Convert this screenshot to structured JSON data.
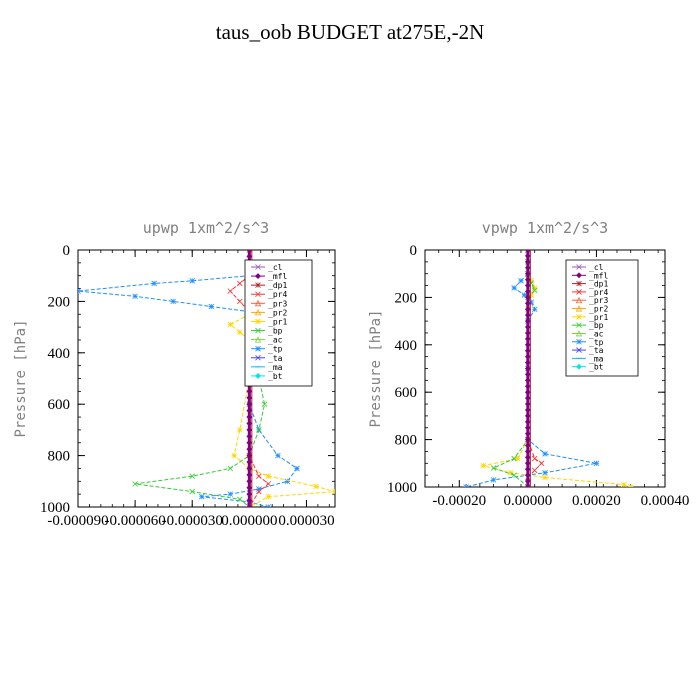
{
  "title": "taus_oob  BUDGET at275E,-2N",
  "legend": [
    {
      "name": "_cl",
      "color": "#9b59b6",
      "marker": "x"
    },
    {
      "name": "_mfl",
      "color": "#800080",
      "marker": "diamond"
    },
    {
      "name": "_dp1",
      "color": "#b22222",
      "marker": "star"
    },
    {
      "name": "_pr4",
      "color": "#ff3030",
      "marker": "x"
    },
    {
      "name": "_pr3",
      "color": "#ff6030",
      "marker": "tri"
    },
    {
      "name": "_pr2",
      "color": "#ffa500",
      "marker": "tri"
    },
    {
      "name": "_pr1",
      "color": "#ffd700",
      "marker": "star"
    },
    {
      "name": "_bp",
      "color": "#32cd32",
      "marker": "x"
    },
    {
      "name": "_ac",
      "color": "#7fd13b",
      "marker": "tri"
    },
    {
      "name": "_tp",
      "color": "#1e90ff",
      "marker": "star"
    },
    {
      "name": "_ta",
      "color": "#4040ff",
      "marker": "x"
    },
    {
      "name": "_ma",
      "color": "#00bfff",
      "marker": "dash"
    },
    {
      "name": "_bt",
      "color": "#00e5ee",
      "marker": "diamond"
    }
  ],
  "chart_data": [
    {
      "type": "line",
      "subtitle": "upwp   1xm^2/s^3",
      "ylabel": "Pressure [hPa]",
      "ylim": [
        1000,
        0
      ],
      "xlim": [
        -9e-05,
        4.5e-05
      ],
      "x_ticks": [
        -9e-05,
        -6e-05,
        -3e-05,
        0.0,
        3e-05
      ],
      "x_tick_labels": [
        "-0.000090",
        "-0.000060",
        "-0.000030",
        "0.000000",
        "0.000030"
      ],
      "y_ticks": [
        0,
        200,
        400,
        600,
        800,
        1000
      ],
      "y_tick_labels": [
        "0",
        "200",
        "400",
        "600",
        "800",
        "1000"
      ],
      "series": [
        {
          "name": "_tp",
          "points": [
            [
              0,
              50
            ],
            [
              0,
              100
            ],
            [
              -3e-05,
              120
            ],
            [
              -5e-05,
              130
            ],
            [
              -9e-05,
              160
            ],
            [
              -6e-05,
              180
            ],
            [
              -4e-05,
              200
            ],
            [
              -2e-05,
              220
            ],
            [
              0,
              240
            ],
            [
              2e-05,
              260
            ],
            [
              2.5e-05,
              280
            ],
            [
              1e-05,
              300
            ],
            [
              0,
              340
            ],
            [
              0,
              400
            ],
            [
              0,
              600
            ],
            [
              5e-06,
              700
            ],
            [
              1.5e-05,
              800
            ],
            [
              2.5e-05,
              850
            ],
            [
              2e-05,
              900
            ],
            [
              5e-06,
              930
            ],
            [
              -1e-05,
              950
            ],
            [
              -2.5e-05,
              960
            ],
            [
              0,
              980
            ],
            [
              1e-05,
              1000
            ]
          ]
        },
        {
          "name": "_pr1",
          "points": [
            [
              0,
              50
            ],
            [
              0,
              100
            ],
            [
              1.5e-05,
              130
            ],
            [
              2.8e-05,
              160
            ],
            [
              2e-05,
              190
            ],
            [
              1e-05,
              220
            ],
            [
              0,
              250
            ],
            [
              -1e-05,
              290
            ],
            [
              -5e-06,
              320
            ],
            [
              0,
              350
            ],
            [
              0,
              500
            ],
            [
              -5e-06,
              700
            ],
            [
              -8e-06,
              800
            ],
            [
              0,
              850
            ],
            [
              1e-05,
              880
            ],
            [
              3.5e-05,
              920
            ],
            [
              4.5e-05,
              940
            ],
            [
              1e-05,
              960
            ],
            [
              0,
              1000
            ]
          ]
        },
        {
          "name": "_bp",
          "points": [
            [
              0,
              50
            ],
            [
              0,
              100
            ],
            [
              5e-06,
              140
            ],
            [
              1e-05,
              170
            ],
            [
              5e-06,
              200
            ],
            [
              0,
              240
            ],
            [
              0,
              300
            ],
            [
              0,
              400
            ],
            [
              5e-06,
              500
            ],
            [
              8e-06,
              600
            ],
            [
              5e-06,
              700
            ],
            [
              0,
              800
            ],
            [
              -1e-05,
              850
            ],
            [
              -3e-05,
              880
            ],
            [
              -6e-05,
              910
            ],
            [
              -3e-05,
              940
            ],
            [
              -5e-06,
              970
            ],
            [
              0,
              1000
            ]
          ]
        },
        {
          "name": "_pr4",
          "points": [
            [
              0,
              50
            ],
            [
              0,
              100
            ],
            [
              -5e-06,
              130
            ],
            [
              -1e-05,
              160
            ],
            [
              -5e-06,
              200
            ],
            [
              0,
              240
            ],
            [
              5e-06,
              270
            ],
            [
              0,
              300
            ],
            [
              0,
              500
            ],
            [
              0,
              800
            ],
            [
              5e-06,
              880
            ],
            [
              1e-05,
              910
            ],
            [
              5e-06,
              940
            ],
            [
              0,
              1000
            ]
          ]
        },
        {
          "name": "_ac",
          "points": [
            [
              0,
              50
            ],
            [
              0,
              100
            ],
            [
              5e-06,
              140
            ],
            [
              1e-05,
              170
            ],
            [
              5e-06,
              200
            ],
            [
              0,
              230
            ],
            [
              5e-06,
              280
            ],
            [
              0,
              320
            ],
            [
              0,
              1000
            ]
          ]
        },
        {
          "name": "_cl",
          "points": [
            [
              0,
              0
            ],
            [
              0,
              1000
            ]
          ]
        }
      ]
    },
    {
      "type": "line",
      "subtitle": "vpwp   1xm^2/s^3",
      "ylabel": "Pressure [hPa]",
      "ylim": [
        1000,
        0
      ],
      "xlim": [
        -0.0003,
        0.0004
      ],
      "x_ticks": [
        -0.0002,
        0.0,
        0.0002,
        0.0004
      ],
      "x_tick_labels": [
        "-0.00020",
        "0.00000",
        "0.00020",
        "0.00040"
      ],
      "y_ticks": [
        0,
        200,
        400,
        600,
        800,
        1000
      ],
      "y_tick_labels": [
        "0",
        "200",
        "400",
        "600",
        "800",
        "1000"
      ],
      "series": [
        {
          "name": "_tp",
          "points": [
            [
              0,
              50
            ],
            [
              0,
              100
            ],
            [
              -2e-05,
              130
            ],
            [
              -4e-05,
              160
            ],
            [
              -1e-05,
              190
            ],
            [
              1e-05,
              220
            ],
            [
              2e-05,
              250
            ],
            [
              0,
              300
            ],
            [
              0,
              500
            ],
            [
              0,
              800
            ],
            [
              5e-05,
              860
            ],
            [
              0.0002,
              900
            ],
            [
              5e-05,
              940
            ],
            [
              -0.0001,
              970
            ],
            [
              -0.00018,
              1000
            ]
          ]
        },
        {
          "name": "_pr1",
          "points": [
            [
              0,
              50
            ],
            [
              0,
              100
            ],
            [
              1e-05,
              130
            ],
            [
              2e-05,
              160
            ],
            [
              1e-05,
              190
            ],
            [
              0,
              250
            ],
            [
              0,
              800
            ],
            [
              -3e-05,
              880
            ],
            [
              -0.00013,
              910
            ],
            [
              -5e-05,
              940
            ],
            [
              5e-05,
              960
            ],
            [
              0.00028,
              990
            ],
            [
              0.0003,
              1000
            ]
          ]
        },
        {
          "name": "_bp",
          "points": [
            [
              0,
              50
            ],
            [
              0,
              100
            ],
            [
              1e-05,
              140
            ],
            [
              2e-05,
              170
            ],
            [
              0,
              200
            ],
            [
              0,
              800
            ],
            [
              -4e-05,
              880
            ],
            [
              -0.0001,
              920
            ],
            [
              -4e-05,
              950
            ],
            [
              0,
              1000
            ]
          ]
        },
        {
          "name": "_pr4",
          "points": [
            [
              0,
              0
            ],
            [
              0,
              800
            ],
            [
              2e-05,
              880
            ],
            [
              4e-05,
              900
            ],
            [
              2e-05,
              930
            ],
            [
              0,
              960
            ],
            [
              0,
              1000
            ]
          ]
        },
        {
          "name": "_cl",
          "points": [
            [
              0,
              0
            ],
            [
              0,
              1000
            ]
          ]
        }
      ]
    }
  ]
}
